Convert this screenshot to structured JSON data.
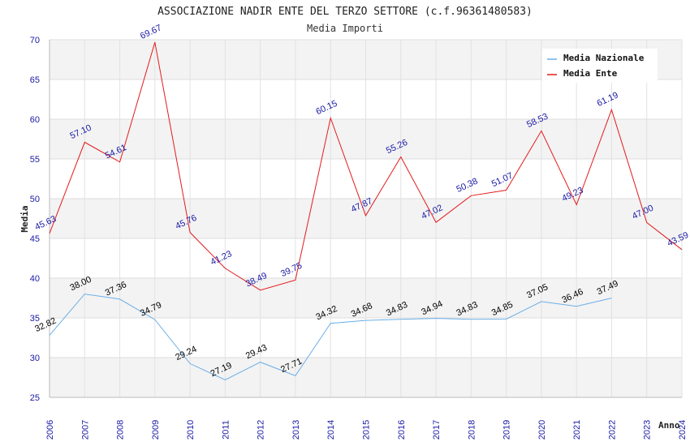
{
  "chart_data": {
    "type": "line",
    "title": "ASSOCIAZIONE NADIR ENTE DEL TERZO SETTORE (c.f.96361480583)",
    "subtitle": "Media Importi",
    "xlabel": "Anno",
    "ylabel": "Media",
    "ylim": [
      25,
      70
    ],
    "yticks": [
      25,
      30,
      35,
      40,
      45,
      50,
      55,
      60,
      65,
      70
    ],
    "grid": true,
    "legend_position": "top-right",
    "x": [
      "2006",
      "2007",
      "2008",
      "2009",
      "2010",
      "2011",
      "2012",
      "2013",
      "2014",
      "2015",
      "2016",
      "2017",
      "2018",
      "2019",
      "2020",
      "2021",
      "2022",
      "2023",
      "2024"
    ],
    "series": [
      {
        "name": "Media Nazionale",
        "color": "#6aaee6",
        "label_color": "#000000",
        "values": [
          32.82,
          38.0,
          37.36,
          34.79,
          29.24,
          27.19,
          29.43,
          27.71,
          34.32,
          34.68,
          34.83,
          34.94,
          34.83,
          34.85,
          37.05,
          36.46,
          37.49,
          null,
          null
        ],
        "labels": [
          "32.82",
          "38.00",
          "37.36",
          "34.79",
          "29.24",
          "27.19",
          "29.43",
          "27.71",
          "34.32",
          "34.68",
          "34.83",
          "34.94",
          "34.83",
          "34.85",
          "37.05",
          "36.46",
          "37.49",
          null,
          null
        ]
      },
      {
        "name": "Media Ente",
        "color": "#e41a1c",
        "label_color": "#1a1aa6",
        "values": [
          45.63,
          57.1,
          54.61,
          69.67,
          45.76,
          41.23,
          38.49,
          39.75,
          60.15,
          47.87,
          55.26,
          47.02,
          50.38,
          51.07,
          58.53,
          49.23,
          61.19,
          47.0,
          43.59
        ],
        "labels": [
          "45.63",
          "57.10",
          "54.61",
          "69.67",
          "45.76",
          "41.23",
          "38.49",
          "39.75",
          "60.15",
          "47.87",
          "55.26",
          "47.02",
          "50.38",
          "51.07",
          "58.53",
          "49.23",
          "61.19",
          "47.00",
          "43.59"
        ]
      }
    ]
  }
}
